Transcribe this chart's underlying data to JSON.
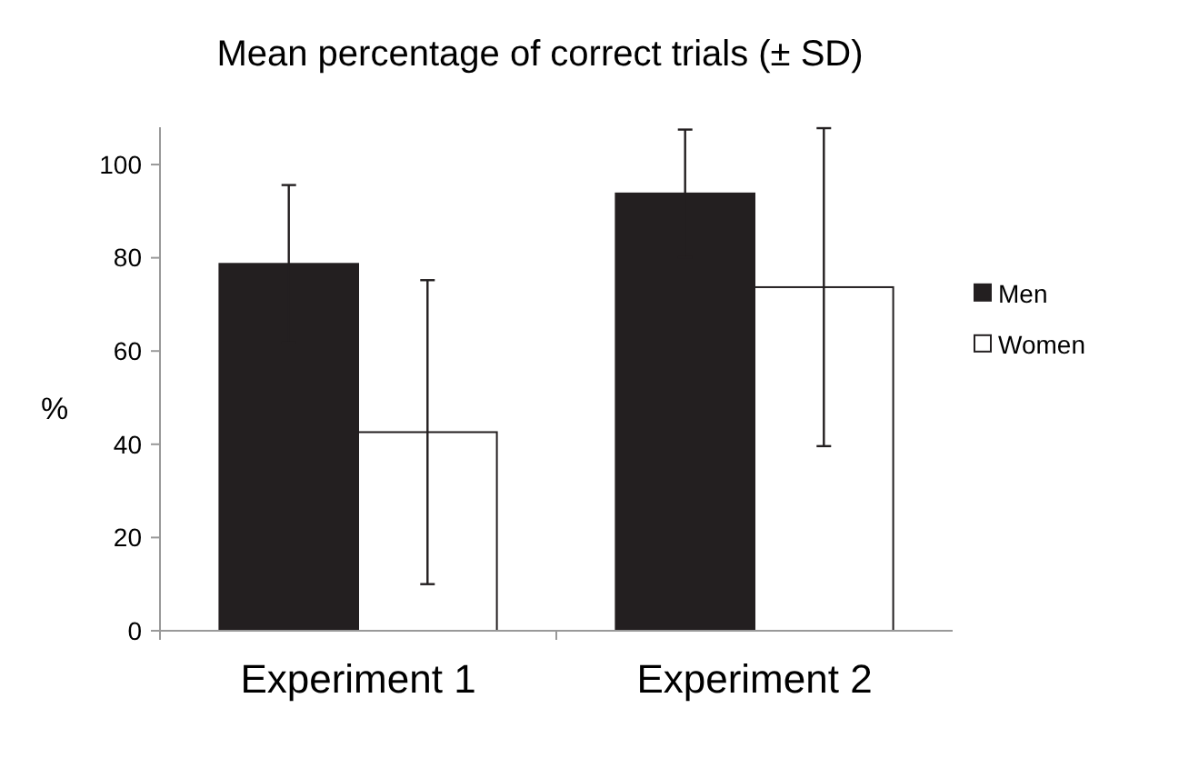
{
  "chart_data": {
    "type": "bar",
    "title": "Mean percentage of correct trials (± SD)",
    "ylabel": "%",
    "categories": [
      "Experiment 1",
      "Experiment 2"
    ],
    "series": [
      {
        "name": "Men",
        "color": "#231f20",
        "values": [
          78.7,
          93.8
        ],
        "errors": [
          16.9,
          13.7
        ]
      },
      {
        "name": "Women",
        "color": "#ffffff",
        "values": [
          42.6,
          73.7
        ],
        "errors": [
          32.6,
          34.1
        ]
      }
    ],
    "ylim": [
      0,
      108
    ],
    "yticks": [
      0,
      20,
      40,
      60,
      80,
      100
    ],
    "grid": false,
    "legend": "right"
  }
}
